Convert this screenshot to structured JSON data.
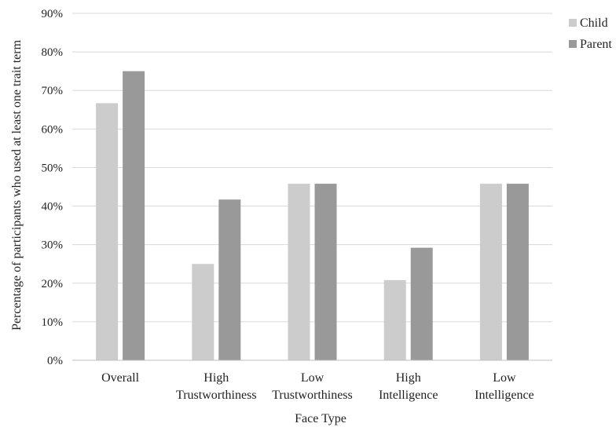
{
  "chart_data": {
    "type": "bar",
    "title": "",
    "xlabel": "Face Type",
    "ylabel": "Percentage of participants who used at least one trait term",
    "categories": [
      [
        "Overall"
      ],
      [
        "High",
        "Trustworthiness"
      ],
      [
        "Low",
        "Trustworthiness"
      ],
      [
        "High",
        "Intelligence"
      ],
      [
        "Low",
        "Intelligence"
      ]
    ],
    "series": [
      {
        "name": "Child",
        "color": "#cccccc",
        "values": [
          66.7,
          25.0,
          45.8,
          20.8,
          45.8
        ]
      },
      {
        "name": "Parent",
        "color": "#999999",
        "values": [
          75.0,
          41.7,
          45.8,
          29.2,
          45.8
        ]
      }
    ],
    "ylim": [
      0,
      90
    ],
    "yticks": [
      "0%",
      "10%",
      "20%",
      "30%",
      "40%",
      "50%",
      "60%",
      "70%",
      "80%",
      "90%"
    ],
    "grid": true,
    "legend_position": "top-right"
  }
}
